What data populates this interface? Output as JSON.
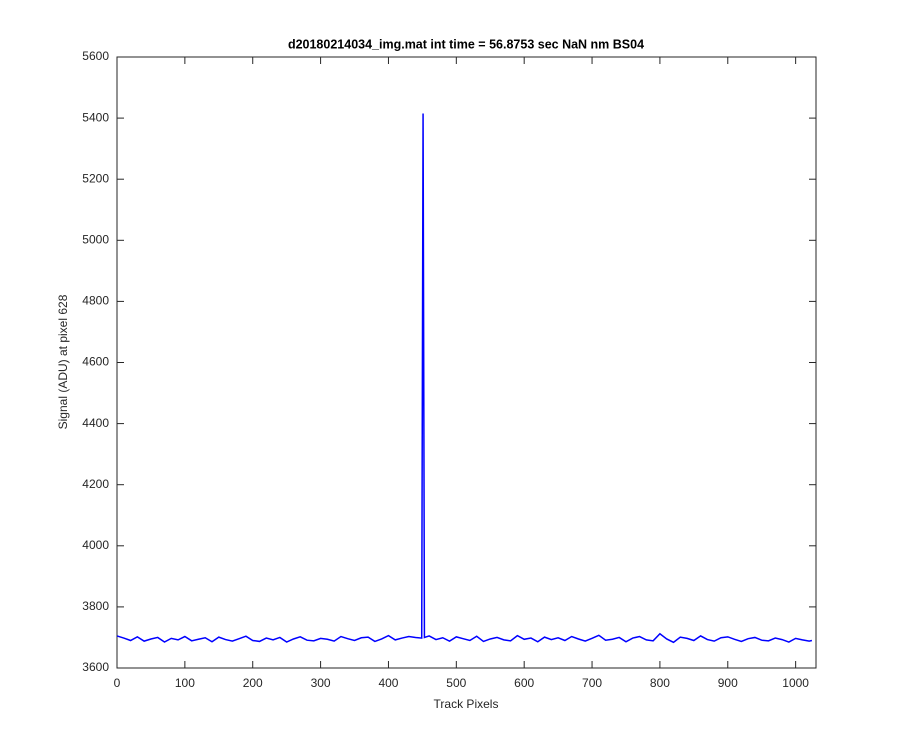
{
  "chart_data": {
    "type": "line",
    "title": "d20180214034_img.mat int time = 56.8753 sec  NaN nm BS04",
    "x_label": "Track Pixels",
    "y_label": "Signal (ADU) at pixel 628",
    "xlim": [
      0,
      1030
    ],
    "ylim": [
      3600,
      5600
    ],
    "xticks": [
      0,
      100,
      200,
      300,
      400,
      500,
      600,
      700,
      800,
      900,
      1000
    ],
    "yticks": [
      3600,
      3800,
      4000,
      4200,
      4400,
      4600,
      4800,
      5000,
      5200,
      5400,
      5600
    ],
    "x": [
      0,
      10,
      20,
      30,
      40,
      50,
      60,
      70,
      80,
      90,
      100,
      110,
      120,
      130,
      140,
      150,
      160,
      170,
      180,
      190,
      200,
      210,
      220,
      230,
      240,
      250,
      260,
      270,
      280,
      290,
      300,
      310,
      320,
      330,
      340,
      350,
      360,
      370,
      380,
      390,
      400,
      410,
      420,
      430,
      440,
      449,
      451,
      453,
      460,
      470,
      480,
      490,
      500,
      510,
      520,
      530,
      540,
      550,
      560,
      570,
      580,
      590,
      600,
      610,
      620,
      630,
      640,
      650,
      660,
      670,
      680,
      690,
      700,
      710,
      720,
      730,
      740,
      750,
      760,
      770,
      780,
      790,
      800,
      810,
      820,
      830,
      840,
      850,
      860,
      870,
      880,
      890,
      900,
      910,
      920,
      930,
      940,
      950,
      960,
      970,
      980,
      990,
      1000,
      1010,
      1020,
      1024
    ],
    "series": [
      {
        "name": "signal",
        "color": "#0000ff",
        "values": [
          3705,
          3698,
          3690,
          3702,
          3688,
          3695,
          3700,
          3685,
          3697,
          3692,
          3703,
          3689,
          3694,
          3699,
          3686,
          3701,
          3693,
          3688,
          3696,
          3704,
          3690,
          3687,
          3698,
          3692,
          3700,
          3685,
          3695,
          3702,
          3691,
          3689,
          3697,
          3694,
          3688,
          3703,
          3696,
          3690,
          3699,
          3701,
          3687,
          3695,
          3706,
          3692,
          3698,
          3703,
          3700,
          3698,
          5415,
          3700,
          3705,
          3693,
          3699,
          3688,
          3702,
          3696,
          3690,
          3704,
          3687,
          3695,
          3700,
          3692,
          3689,
          3706,
          3694,
          3698,
          3686,
          3701,
          3693,
          3699,
          3690,
          3703,
          3695,
          3688,
          3697,
          3707,
          3691,
          3694,
          3700,
          3686,
          3698,
          3703,
          3692,
          3689,
          3712,
          3695,
          3684,
          3701,
          3697,
          3690,
          3705,
          3693,
          3688,
          3699,
          3702,
          3694,
          3687,
          3696,
          3700,
          3691,
          3689,
          3698,
          3693,
          3685,
          3697,
          3692,
          3688,
          3690
        ]
      }
    ]
  }
}
